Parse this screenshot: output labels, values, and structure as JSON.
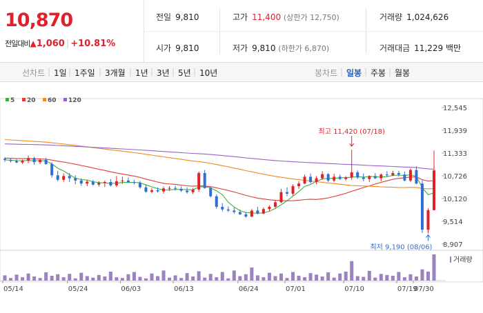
{
  "quote": {
    "price": "10,870",
    "change_label": "전일대비",
    "change_arrow": "▲",
    "change": "1,060",
    "change_pct": "+10.81%"
  },
  "summary": {
    "prev_close_label": "전일",
    "prev_close": "9,810",
    "open_label": "시가",
    "open": "9,810",
    "high_label": "고가",
    "high": "11,400",
    "high_limit": "(상한가 12,750)",
    "low_label": "저가",
    "low": "9,810",
    "low_limit": "(하한가 6,870)",
    "volume_label": "거래량",
    "volume": "1,024,626",
    "amount_label": "거래대금",
    "amount": "11,229 백만"
  },
  "toolbar": {
    "line_chart_label": "선차트",
    "periods": [
      "1일",
      "1주일",
      "3개월",
      "1년",
      "3년",
      "5년",
      "10년"
    ],
    "candle_chart_label": "봉차트",
    "candle_options": [
      "일봉",
      "주봉",
      "월봉"
    ],
    "candle_selected": "일봉"
  },
  "chart_data": {
    "type": "candlestick",
    "legend": [
      {
        "name": "5",
        "color": "#3fae3f"
      },
      {
        "name": "20",
        "color": "#e23a3a"
      },
      {
        "name": "60",
        "color": "#f08a1c"
      },
      {
        "name": "120",
        "color": "#9a62c8"
      }
    ],
    "y_ticks": [
      "12,545",
      "11,939",
      "11,333",
      "10,726",
      "10,120",
      "9,514",
      "8,907"
    ],
    "ylim": [
      8907,
      12545
    ],
    "x_ticks": [
      "05/14",
      "05/24",
      "06/03",
      "06/13",
      "06/24",
      "07/01",
      "07/10",
      "07/19",
      "07/30"
    ],
    "up_color": "#e0202a",
    "down_color": "#2f6fd6",
    "candles": [
      [
        11180,
        11220,
        11100,
        11150
      ],
      [
        11150,
        11200,
        11080,
        11120
      ],
      [
        11120,
        11170,
        11060,
        11080
      ],
      [
        11080,
        11160,
        11040,
        11130
      ],
      [
        11130,
        11270,
        11060,
        11200
      ],
      [
        11200,
        11230,
        11020,
        11090
      ],
      [
        11090,
        11190,
        11040,
        11150
      ],
      [
        11150,
        11210,
        11020,
        11040
      ],
      [
        11040,
        11090,
        10680,
        10740
      ],
      [
        10740,
        10860,
        10580,
        10620
      ],
      [
        10620,
        10790,
        10570,
        10720
      ],
      [
        10720,
        10800,
        10560,
        10660
      ],
      [
        10660,
        10740,
        10500,
        10600
      ],
      [
        10600,
        10660,
        10460,
        10520
      ],
      [
        10520,
        10610,
        10450,
        10570
      ],
      [
        10570,
        10620,
        10460,
        10490
      ],
      [
        10490,
        10580,
        10440,
        10540
      ],
      [
        10540,
        10600,
        10430,
        10560
      ],
      [
        10560,
        10640,
        10440,
        10470
      ],
      [
        10470,
        10720,
        10430,
        10580
      ],
      [
        10580,
        10700,
        10510,
        10600
      ],
      [
        10600,
        10680,
        10540,
        10560
      ],
      [
        10560,
        10620,
        10500,
        10540
      ],
      [
        10540,
        10590,
        10380,
        10420
      ],
      [
        10420,
        10500,
        10280,
        10300
      ],
      [
        10300,
        10400,
        10260,
        10340
      ],
      [
        10340,
        10420,
        10280,
        10310
      ],
      [
        10310,
        10440,
        10250,
        10390
      ],
      [
        10390,
        10450,
        10320,
        10400
      ],
      [
        10400,
        10460,
        10330,
        10380
      ],
      [
        10380,
        10440,
        10300,
        10330
      ],
      [
        10330,
        10420,
        10250,
        10290
      ],
      [
        10290,
        10400,
        10240,
        10360
      ],
      [
        10360,
        10840,
        10300,
        10800
      ],
      [
        10800,
        10880,
        10380,
        10400
      ],
      [
        10400,
        10440,
        10150,
        10180
      ],
      [
        10180,
        10230,
        9850,
        9900
      ],
      [
        9900,
        10000,
        9780,
        9830
      ],
      [
        9830,
        9910,
        9760,
        9800
      ],
      [
        9800,
        9880,
        9720,
        9760
      ],
      [
        9760,
        9830,
        9680,
        9700
      ],
      [
        9700,
        9760,
        9610,
        9640
      ],
      [
        9640,
        9840,
        9620,
        9800
      ],
      [
        9800,
        9900,
        9700,
        9720
      ],
      [
        9720,
        9880,
        9700,
        9840
      ],
      [
        9840,
        9940,
        9780,
        9900
      ],
      [
        9900,
        10080,
        9860,
        10020
      ],
      [
        10020,
        10380,
        10000,
        10290
      ],
      [
        10290,
        10420,
        10180,
        10250
      ],
      [
        10250,
        10500,
        10200,
        10450
      ],
      [
        10450,
        10580,
        10380,
        10520
      ],
      [
        10520,
        10760,
        10500,
        10700
      ],
      [
        10700,
        10790,
        10520,
        10560
      ],
      [
        10560,
        10720,
        10500,
        10660
      ],
      [
        10660,
        10850,
        10620,
        10770
      ],
      [
        10770,
        10800,
        10560,
        10600
      ],
      [
        10600,
        10780,
        10560,
        10700
      ],
      [
        10700,
        10760,
        10610,
        10640
      ],
      [
        10640,
        10720,
        10600,
        10680
      ],
      [
        10680,
        11420,
        10620,
        10820
      ],
      [
        10820,
        10870,
        10640,
        10680
      ],
      [
        10680,
        10790,
        10580,
        10640
      ],
      [
        10640,
        10740,
        10560,
        10720
      ],
      [
        10720,
        10800,
        10640,
        10660
      ],
      [
        10660,
        10790,
        10580,
        10760
      ],
      [
        10760,
        10850,
        10700,
        10740
      ],
      [
        10740,
        10860,
        10720,
        10800
      ],
      [
        10800,
        10860,
        10700,
        10760
      ],
      [
        10760,
        10840,
        10580,
        10600
      ],
      [
        10600,
        10920,
        10560,
        10880
      ],
      [
        10880,
        10980,
        10500,
        10520
      ],
      [
        10520,
        10620,
        9200,
        9290
      ],
      [
        9290,
        9860,
        9190,
        9810
      ],
      [
        9810,
        11400,
        9810,
        10870
      ]
    ],
    "annotations": [
      {
        "text": "최고 11,420 (07/18)",
        "value": 11420
      },
      {
        "text": "최저 9,190 (08/06)",
        "value": 9190
      }
    ],
    "volume_label": "거래량",
    "volume": [
      14,
      7,
      16,
      9,
      19,
      11,
      7,
      22,
      13,
      17,
      9,
      18,
      6,
      21,
      12,
      8,
      15,
      11,
      24,
      9,
      7,
      17,
      23,
      10,
      6,
      19,
      12,
      27,
      8,
      14,
      7,
      20,
      11,
      25,
      8,
      18,
      9,
      23,
      6,
      27,
      12,
      17,
      35,
      14,
      9,
      21,
      12,
      19,
      7,
      23,
      13,
      9,
      20,
      16,
      11,
      22,
      8,
      19,
      24,
      52,
      12,
      10,
      26,
      8,
      18,
      15,
      13,
      23,
      9,
      17,
      11,
      30,
      24,
      70
    ]
  }
}
